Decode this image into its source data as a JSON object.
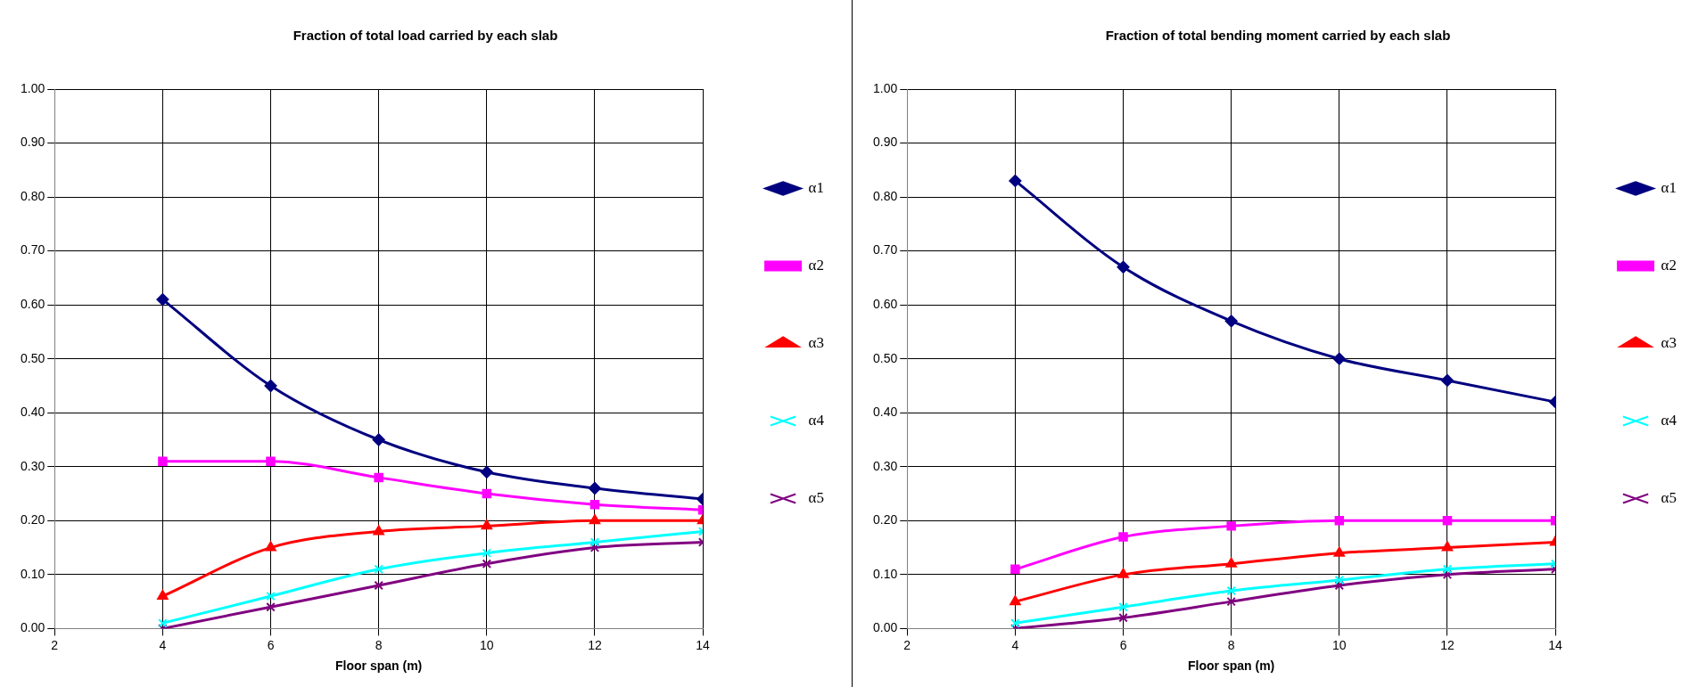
{
  "chart_data": [
    {
      "type": "line",
      "title": "Fraction of total load carried by each slab",
      "xlabel": "Floor span (m)",
      "x": [
        4,
        6,
        8,
        10,
        12,
        14
      ],
      "xlim": [
        2,
        14
      ],
      "xticks": [
        2,
        4,
        6,
        8,
        10,
        12,
        14
      ],
      "ylim": [
        0,
        1
      ],
      "yticks": [
        {
          "value": 0,
          "label": "0.00"
        },
        {
          "value": 0.1,
          "label": "0.10"
        },
        {
          "value": 0.2,
          "label": "0.20"
        },
        {
          "value": 0.3,
          "label": "0.30"
        },
        {
          "value": 0.4,
          "label": "0.40"
        },
        {
          "value": 0.5,
          "label": "0.50"
        },
        {
          "value": 0.6,
          "label": "0.60"
        },
        {
          "value": 0.7,
          "label": "0.70"
        },
        {
          "value": 0.8,
          "label": "0.80"
        },
        {
          "value": 0.9,
          "label": "0.90"
        },
        {
          "value": 1,
          "label": "1.00"
        }
      ],
      "grid": true,
      "legend": "right",
      "series": [
        {
          "name": "α1",
          "color": "#000080",
          "marker": "diamond",
          "values": [
            0.61,
            0.45,
            0.35,
            0.29,
            0.26,
            0.24
          ]
        },
        {
          "name": "α2",
          "color": "#ff00ff",
          "marker": "square",
          "values": [
            0.31,
            0.31,
            0.28,
            0.25,
            0.23,
            0.22
          ]
        },
        {
          "name": "α3",
          "color": "#ff0000",
          "marker": "triangle",
          "values": [
            0.06,
            0.15,
            0.18,
            0.19,
            0.2,
            0.2
          ]
        },
        {
          "name": "α4",
          "color": "#00ffff",
          "marker": "cross",
          "values": [
            0.01,
            0.06,
            0.11,
            0.14,
            0.16,
            0.18
          ]
        },
        {
          "name": "α5",
          "color": "#800080",
          "marker": "cross",
          "values": [
            0.0,
            0.04,
            0.08,
            0.12,
            0.15,
            0.16
          ]
        }
      ]
    },
    {
      "type": "line",
      "title": "Fraction of total bending moment carried by each slab",
      "xlabel": "Floor span (m)",
      "x": [
        4,
        6,
        8,
        10,
        12,
        14
      ],
      "xlim": [
        2,
        14
      ],
      "xticks": [
        2,
        4,
        6,
        8,
        10,
        12,
        14
      ],
      "ylim": [
        0,
        1
      ],
      "yticks": [
        {
          "value": 0,
          "label": "0.00"
        },
        {
          "value": 0.1,
          "label": "0.10"
        },
        {
          "value": 0.2,
          "label": "0.20"
        },
        {
          "value": 0.3,
          "label": "0.30"
        },
        {
          "value": 0.4,
          "label": "0.40"
        },
        {
          "value": 0.5,
          "label": "0.50"
        },
        {
          "value": 0.6,
          "label": "0.60"
        },
        {
          "value": 0.7,
          "label": "0.70"
        },
        {
          "value": 0.8,
          "label": "0.80"
        },
        {
          "value": 0.9,
          "label": "0.90"
        },
        {
          "value": 1,
          "label": "1.00"
        }
      ],
      "grid": true,
      "legend": "right",
      "series": [
        {
          "name": "α1",
          "color": "#000080",
          "marker": "diamond",
          "values": [
            0.83,
            0.67,
            0.57,
            0.5,
            0.46,
            0.42
          ]
        },
        {
          "name": "α2",
          "color": "#ff00ff",
          "marker": "square",
          "values": [
            0.11,
            0.17,
            0.19,
            0.2,
            0.2,
            0.2
          ]
        },
        {
          "name": "α3",
          "color": "#ff0000",
          "marker": "triangle",
          "values": [
            0.05,
            0.1,
            0.12,
            0.14,
            0.15,
            0.16
          ]
        },
        {
          "name": "α4",
          "color": "#00ffff",
          "marker": "cross",
          "values": [
            0.01,
            0.04,
            0.07,
            0.09,
            0.11,
            0.12
          ]
        },
        {
          "name": "α5",
          "color": "#800080",
          "marker": "cross",
          "values": [
            0.0,
            0.02,
            0.05,
            0.08,
            0.1,
            0.11
          ]
        }
      ]
    }
  ]
}
